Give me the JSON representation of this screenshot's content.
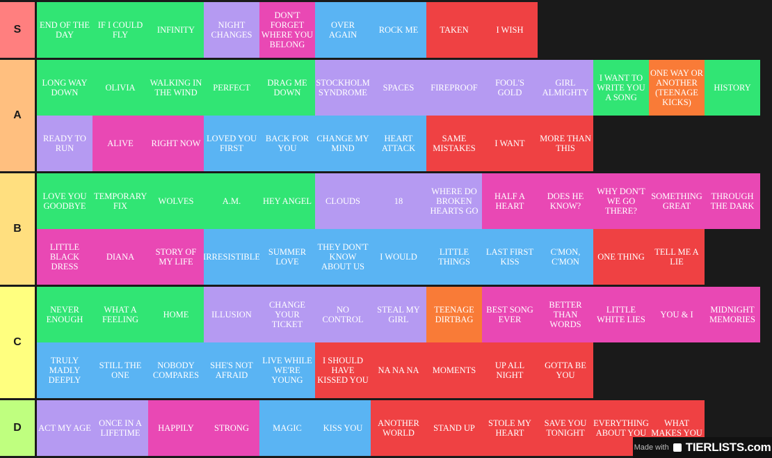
{
  "colors": {
    "green": "#31e574",
    "purple": "#b59af2",
    "pink": "#e948b4",
    "blue": "#5ab4f3",
    "red": "#ef4143",
    "orange": "#f97b37"
  },
  "tiers": [
    {
      "label": "S",
      "color": "#ff7f7f",
      "items": [
        {
          "text": "END OF THE DAY",
          "color": "green"
        },
        {
          "text": "IF I COULD FLY",
          "color": "green"
        },
        {
          "text": "INFINITY",
          "color": "green"
        },
        {
          "text": "NIGHT CHANGES",
          "color": "purple"
        },
        {
          "text": "DON'T FORGET WHERE YOU BELONG",
          "color": "pink"
        },
        {
          "text": "OVER AGAIN",
          "color": "blue"
        },
        {
          "text": "ROCK ME",
          "color": "blue"
        },
        {
          "text": "TAKEN",
          "color": "red"
        },
        {
          "text": "I WISH",
          "color": "red"
        }
      ]
    },
    {
      "label": "A",
      "color": "#ffbf7f",
      "items": [
        {
          "text": "LONG WAY DOWN",
          "color": "green"
        },
        {
          "text": "OLIVIA",
          "color": "green"
        },
        {
          "text": "WALKING IN THE WIND",
          "color": "green"
        },
        {
          "text": "PERFECT",
          "color": "green"
        },
        {
          "text": "DRAG ME DOWN",
          "color": "green"
        },
        {
          "text": "STOCKHOLM SYNDROME",
          "color": "purple"
        },
        {
          "text": "SPACES",
          "color": "purple"
        },
        {
          "text": "FIREPROOF",
          "color": "purple"
        },
        {
          "text": "FOOL'S GOLD",
          "color": "purple"
        },
        {
          "text": "GIRL ALMIGHTY",
          "color": "purple"
        },
        {
          "text": "I WANT TO WRITE YOU A SONG",
          "color": "green"
        },
        {
          "text": "ONE WAY OR ANOTHER (TEENAGE KICKS)",
          "color": "orange"
        },
        {
          "text": "HISTORY",
          "color": "green"
        },
        {
          "text": "READY TO RUN",
          "color": "purple"
        },
        {
          "text": "ALIVE",
          "color": "pink"
        },
        {
          "text": "RIGHT NOW",
          "color": "pink"
        },
        {
          "text": "LOVED YOU FIRST",
          "color": "blue"
        },
        {
          "text": "BACK FOR YOU",
          "color": "blue"
        },
        {
          "text": "CHANGE MY MIND",
          "color": "blue"
        },
        {
          "text": "HEART ATTACK",
          "color": "blue"
        },
        {
          "text": "SAME MISTAKES",
          "color": "red"
        },
        {
          "text": "I WANT",
          "color": "red"
        },
        {
          "text": "MORE THAN THIS",
          "color": "red"
        }
      ]
    },
    {
      "label": "B",
      "color": "#ffdf7f",
      "items": [
        {
          "text": "LOVE YOU GOODBYE",
          "color": "green"
        },
        {
          "text": "TEMPORARY FIX",
          "color": "green"
        },
        {
          "text": "WOLVES",
          "color": "green"
        },
        {
          "text": "A.M.",
          "color": "green"
        },
        {
          "text": "HEY ANGEL",
          "color": "green"
        },
        {
          "text": "CLOUDS",
          "color": "purple"
        },
        {
          "text": "18",
          "color": "purple"
        },
        {
          "text": "WHERE DO BROKEN HEARTS GO",
          "color": "purple"
        },
        {
          "text": "HALF A HEART",
          "color": "pink"
        },
        {
          "text": "DOES HE KNOW?",
          "color": "pink"
        },
        {
          "text": "WHY DON'T WE GO THERE?",
          "color": "pink"
        },
        {
          "text": "SOMETHING GREAT",
          "color": "pink"
        },
        {
          "text": "THROUGH THE DARK",
          "color": "pink"
        },
        {
          "text": "LITTLE BLACK DRESS",
          "color": "pink"
        },
        {
          "text": "DIANA",
          "color": "pink"
        },
        {
          "text": "STORY OF MY LIFE",
          "color": "pink"
        },
        {
          "text": "IRRESISTIBLE",
          "color": "blue"
        },
        {
          "text": "SUMMER LOVE",
          "color": "blue"
        },
        {
          "text": "THEY DON'T KNOW ABOUT US",
          "color": "blue"
        },
        {
          "text": "I WOULD",
          "color": "blue"
        },
        {
          "text": "LITTLE THINGS",
          "color": "blue"
        },
        {
          "text": "LAST FIRST KISS",
          "color": "blue"
        },
        {
          "text": "C'MON, C'MON",
          "color": "blue"
        },
        {
          "text": "ONE THING",
          "color": "red"
        },
        {
          "text": "TELL ME A LIE",
          "color": "red"
        }
      ]
    },
    {
      "label": "C",
      "color": "#ffff7f",
      "items": [
        {
          "text": "NEVER ENOUGH",
          "color": "green"
        },
        {
          "text": "WHAT A FEELING",
          "color": "green"
        },
        {
          "text": "HOME",
          "color": "green"
        },
        {
          "text": "ILLUSION",
          "color": "purple"
        },
        {
          "text": "CHANGE YOUR TICKET",
          "color": "purple"
        },
        {
          "text": "NO CONTROL",
          "color": "purple"
        },
        {
          "text": "STEAL MY GIRL",
          "color": "purple"
        },
        {
          "text": "TEENAGE DIRTBAG",
          "color": "orange"
        },
        {
          "text": "BEST SONG EVER",
          "color": "pink"
        },
        {
          "text": "BETTER THAN WORDS",
          "color": "pink"
        },
        {
          "text": "LITTLE WHITE LIES",
          "color": "pink"
        },
        {
          "text": "YOU & I",
          "color": "pink"
        },
        {
          "text": "MIDNIGHT MEMORIES",
          "color": "pink"
        },
        {
          "text": "TRULY MADLY DEEPLY",
          "color": "blue"
        },
        {
          "text": "STILL THE ONE",
          "color": "blue"
        },
        {
          "text": "NOBODY COMPARES",
          "color": "blue"
        },
        {
          "text": "SHE'S NOT AFRAID",
          "color": "blue"
        },
        {
          "text": "LIVE WHILE WE'RE YOUNG",
          "color": "blue"
        },
        {
          "text": "I SHOULD HAVE KISSED YOU",
          "color": "red"
        },
        {
          "text": "NA NA NA",
          "color": "red"
        },
        {
          "text": "MOMENTS",
          "color": "red"
        },
        {
          "text": "UP ALL NIGHT",
          "color": "red"
        },
        {
          "text": "GOTTA BE YOU",
          "color": "red"
        }
      ]
    },
    {
      "label": "D",
      "color": "#bfff7f",
      "items": [
        {
          "text": "ACT MY AGE",
          "color": "purple"
        },
        {
          "text": "ONCE IN A LIFETIME",
          "color": "purple"
        },
        {
          "text": "HAPPILY",
          "color": "pink"
        },
        {
          "text": "STRONG",
          "color": "pink"
        },
        {
          "text": "MAGIC",
          "color": "blue"
        },
        {
          "text": "KISS YOU",
          "color": "blue"
        },
        {
          "text": "ANOTHER WORLD",
          "color": "red"
        },
        {
          "text": "STAND UP",
          "color": "red"
        },
        {
          "text": "STOLE MY HEART",
          "color": "red"
        },
        {
          "text": "SAVE YOU TONIGHT",
          "color": "red"
        },
        {
          "text": "EVERYTHING ABOUT YOU",
          "color": "red"
        },
        {
          "text": "WHAT MAKES YOU",
          "color": "red"
        }
      ]
    }
  ],
  "watermark": {
    "made_with": "Made with",
    "brand": "TIERLISTS.com"
  }
}
